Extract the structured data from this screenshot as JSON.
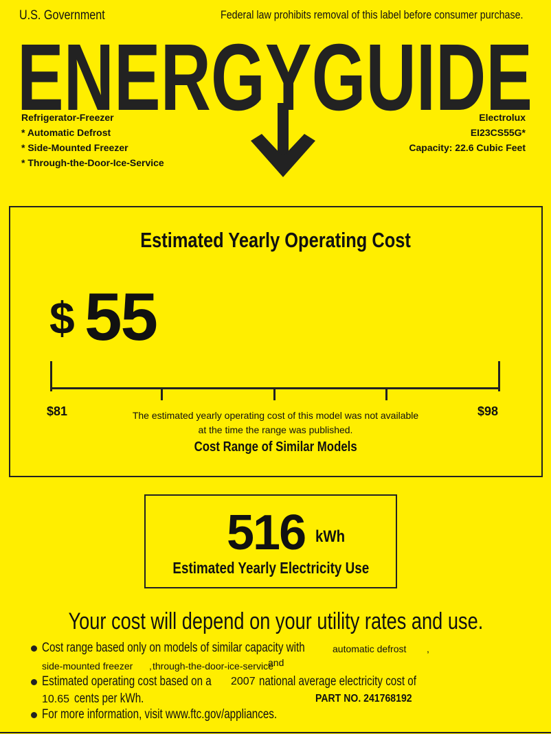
{
  "header": {
    "issuer": "U.S. Government",
    "notice": "Federal law prohibits removal of this label before consumer purchase.",
    "title": "ENERGYGUIDE"
  },
  "product": {
    "type": "Refrigerator-Freezer",
    "features": [
      "* Automatic Defrost",
      "* Side-Mounted Freezer",
      "* Through-the-Door-Ice-Service"
    ],
    "brand": "Electrolux",
    "model": "EI23CS55G*",
    "capacity": "Capacity: 22.6 Cubic Feet"
  },
  "cost": {
    "heading": "Estimated Yearly Operating Cost",
    "currency": "$",
    "value": "55",
    "range_min": "$81",
    "range_max": "$98",
    "note_line1": "The estimated yearly operating cost of this model was not available",
    "note_line2": "at the time the range was published.",
    "range_caption": "Cost Range of Similar Models"
  },
  "electricity": {
    "value": "516",
    "unit": "kWh",
    "caption": "Estimated Yearly Electricity Use"
  },
  "footer": {
    "headline": "Your cost will depend on your utility rates and use.",
    "b1_prefix": "Cost range based only on models of similar capacity with",
    "b1_feature1": "automatic defrost",
    "b1_comma": ",",
    "b1_line2_a": "side-mounted freezer",
    "b1_line2_comma": ",",
    "b1_line2_b": "through-the-door-ice-service",
    "b1_and": "and",
    "b2_prefix": "Estimated operating cost based on a",
    "b2_year": "2007",
    "b2_suffix": "national average electricity cost of",
    "b2_rate": "10.65",
    "b2_unit": "cents per kWh.",
    "part_no": "PART NO. 241768192",
    "b3": "For more information, visit www.ftc.gov/appliances."
  },
  "colors": {
    "background": "#FFEE00",
    "ink": "#222222"
  }
}
